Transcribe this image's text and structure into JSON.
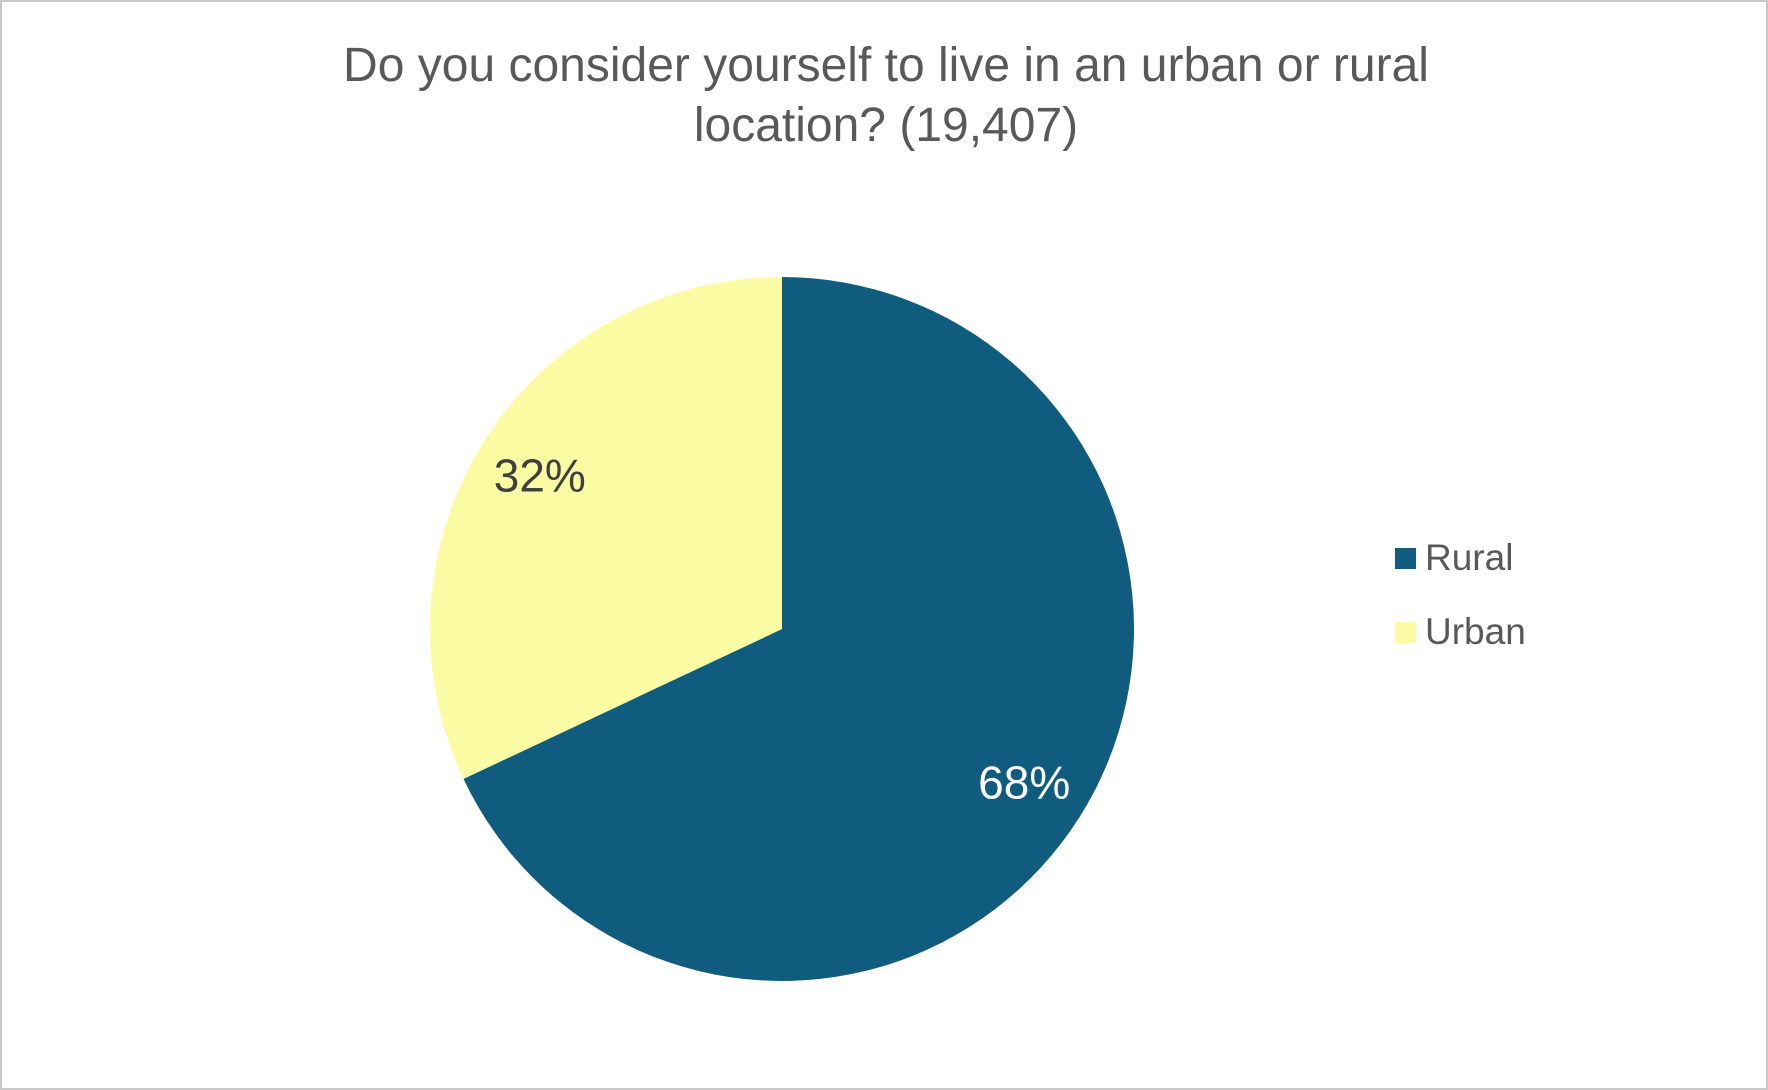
{
  "frame": {
    "background": "#ffffff",
    "border_color": "#c9c9c9"
  },
  "chart_data": {
    "type": "pie",
    "title": "Do you consider yourself to live in an urban or rural location? (19,407)",
    "title_color": "#595959",
    "categories": [
      "Rural",
      "Urban"
    ],
    "values": [
      68,
      32
    ],
    "slice_labels": [
      "68%",
      "32%"
    ],
    "slice_colors": [
      "#0f5c7f",
      "#fbfba3"
    ],
    "slice_label_colors": [
      "#ffffff",
      "#404040"
    ],
    "start_angle_deg": 0,
    "direction": "clockwise",
    "legend_position": "right",
    "legend_text_color": "#595959"
  }
}
